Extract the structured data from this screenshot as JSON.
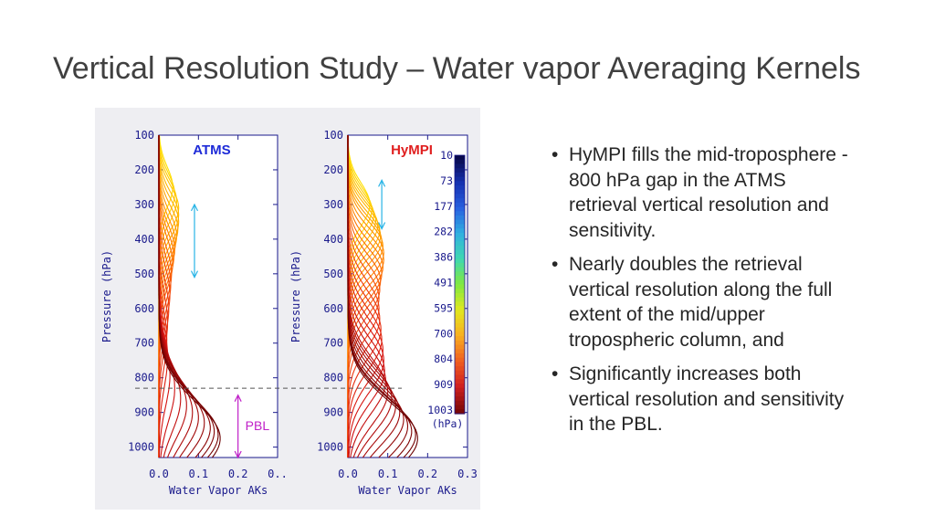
{
  "slide": {
    "title": "Vertical Resolution Study – Water vapor Averaging Kernels",
    "bullets": [
      "HyMPI fills the mid-troposphere - 800 hPa gap in the ATMS retrieval vertical resolution and sensitivity.",
      "Nearly doubles the retrieval vertical resolution along the full extent of the mid/upper tropospheric column, and",
      "Significantly increases both vertical resolution and sensitivity in the PBL."
    ]
  },
  "chart_data": [
    {
      "type": "line",
      "title": "ATMS",
      "title_color": "#1e2bd8",
      "xlabel": "Water Vapor AKs",
      "ylabel": "Pressure (hPa)",
      "xlim": [
        0.0,
        0.3
      ],
      "ylim": [
        1030,
        100
      ],
      "y_log": false,
      "x_ticks": [
        "0.0",
        "0.1",
        "0.2",
        "0.."
      ],
      "y_ticks": [
        100,
        200,
        300,
        400,
        500,
        600,
        700,
        800,
        900,
        1000
      ],
      "annotations": [
        {
          "text": "",
          "kind": "double-arrow",
          "color": "#28b4e6",
          "p_from": 300,
          "p_to": 510,
          "x": 0.09
        },
        {
          "text": "PBL",
          "kind": "double-arrow",
          "color": "#c020c8",
          "p_from": 850,
          "p_to": 1030,
          "x": 0.2
        }
      ],
      "series": [
        {
          "peak_p": 250,
          "peak_x": 0.035
        },
        {
          "peak_p": 270,
          "peak_x": 0.04
        },
        {
          "peak_p": 290,
          "peak_x": 0.045
        },
        {
          "peak_p": 310,
          "peak_x": 0.05
        },
        {
          "peak_p": 330,
          "peak_x": 0.05
        },
        {
          "peak_p": 350,
          "peak_x": 0.05
        },
        {
          "peak_p": 370,
          "peak_x": 0.048
        },
        {
          "peak_p": 390,
          "peak_x": 0.045
        },
        {
          "peak_p": 410,
          "peak_x": 0.042
        },
        {
          "peak_p": 430,
          "peak_x": 0.04
        },
        {
          "peak_p": 450,
          "peak_x": 0.038
        },
        {
          "peak_p": 470,
          "peak_x": 0.035
        },
        {
          "peak_p": 500,
          "peak_x": 0.032
        },
        {
          "peak_p": 530,
          "peak_x": 0.03
        },
        {
          "peak_p": 560,
          "peak_x": 0.028
        },
        {
          "peak_p": 600,
          "peak_x": 0.025
        },
        {
          "peak_p": 640,
          "peak_x": 0.022
        },
        {
          "peak_p": 690,
          "peak_x": 0.02
        },
        {
          "peak_p": 740,
          "peak_x": 0.022
        },
        {
          "peak_p": 790,
          "peak_x": 0.028
        },
        {
          "peak_p": 830,
          "peak_x": 0.04
        },
        {
          "peak_p": 860,
          "peak_x": 0.055
        },
        {
          "peak_p": 880,
          "peak_x": 0.07
        },
        {
          "peak_p": 900,
          "peak_x": 0.085
        },
        {
          "peak_p": 915,
          "peak_x": 0.1
        },
        {
          "peak_p": 930,
          "peak_x": 0.115
        },
        {
          "peak_p": 945,
          "peak_x": 0.13
        },
        {
          "peak_p": 955,
          "peak_x": 0.14
        },
        {
          "peak_p": 965,
          "peak_x": 0.15
        },
        {
          "peak_p": 975,
          "peak_x": 0.155
        }
      ]
    },
    {
      "type": "line",
      "title": "HyMPI",
      "title_color": "#e02020",
      "xlabel": "Water Vapor AKs",
      "ylabel": "Pressure (hPa)",
      "xlim": [
        0.0,
        0.3
      ],
      "ylim": [
        1030,
        100
      ],
      "y_log": false,
      "x_ticks": [
        "0.0",
        "0.1",
        "0.2",
        "0.3"
      ],
      "y_ticks": [
        100,
        200,
        300,
        400,
        500,
        600,
        700,
        800,
        900,
        1000
      ],
      "annotations": [
        {
          "text": "",
          "kind": "double-arrow",
          "color": "#28b4e6",
          "p_from": 230,
          "p_to": 370,
          "x": 0.085
        }
      ],
      "colorbar": {
        "unit": "(hPa)",
        "ticks": [
          "10",
          "73",
          "177",
          "282",
          "386",
          "491",
          "595",
          "700",
          "804",
          "909",
          "1003"
        ],
        "colors": [
          "#08084a",
          "#1530b0",
          "#2860e0",
          "#30b0e0",
          "#40d8b0",
          "#80e840",
          "#e0e820",
          "#f8b020",
          "#f06020",
          "#d02020",
          "#7a0808"
        ]
      },
      "series": [
        {
          "peak_p": 300,
          "peak_x": 0.055
        },
        {
          "peak_p": 315,
          "peak_x": 0.06
        },
        {
          "peak_p": 330,
          "peak_x": 0.065
        },
        {
          "peak_p": 345,
          "peak_x": 0.07
        },
        {
          "peak_p": 360,
          "peak_x": 0.075
        },
        {
          "peak_p": 375,
          "peak_x": 0.08
        },
        {
          "peak_p": 390,
          "peak_x": 0.082
        },
        {
          "peak_p": 405,
          "peak_x": 0.085
        },
        {
          "peak_p": 420,
          "peak_x": 0.088
        },
        {
          "peak_p": 440,
          "peak_x": 0.09
        },
        {
          "peak_p": 460,
          "peak_x": 0.09
        },
        {
          "peak_p": 480,
          "peak_x": 0.088
        },
        {
          "peak_p": 500,
          "peak_x": 0.085
        },
        {
          "peak_p": 520,
          "peak_x": 0.082
        },
        {
          "peak_p": 545,
          "peak_x": 0.08
        },
        {
          "peak_p": 570,
          "peak_x": 0.078
        },
        {
          "peak_p": 600,
          "peak_x": 0.078
        },
        {
          "peak_p": 630,
          "peak_x": 0.08
        },
        {
          "peak_p": 660,
          "peak_x": 0.083
        },
        {
          "peak_p": 690,
          "peak_x": 0.085
        },
        {
          "peak_p": 720,
          "peak_x": 0.088
        },
        {
          "peak_p": 750,
          "peak_x": 0.09
        },
        {
          "peak_p": 780,
          "peak_x": 0.092
        },
        {
          "peak_p": 810,
          "peak_x": 0.095
        },
        {
          "peak_p": 840,
          "peak_x": 0.1
        },
        {
          "peak_p": 860,
          "peak_x": 0.11
        },
        {
          "peak_p": 880,
          "peak_x": 0.12
        },
        {
          "peak_p": 900,
          "peak_x": 0.13
        },
        {
          "peak_p": 920,
          "peak_x": 0.14
        },
        {
          "peak_p": 940,
          "peak_x": 0.15
        },
        {
          "peak_p": 955,
          "peak_x": 0.16
        },
        {
          "peak_p": 965,
          "peak_x": 0.17
        },
        {
          "peak_p": 975,
          "peak_x": 0.175
        }
      ]
    }
  ],
  "reference_line": {
    "pressure": 830,
    "style": "dashed",
    "color": "#555555"
  }
}
